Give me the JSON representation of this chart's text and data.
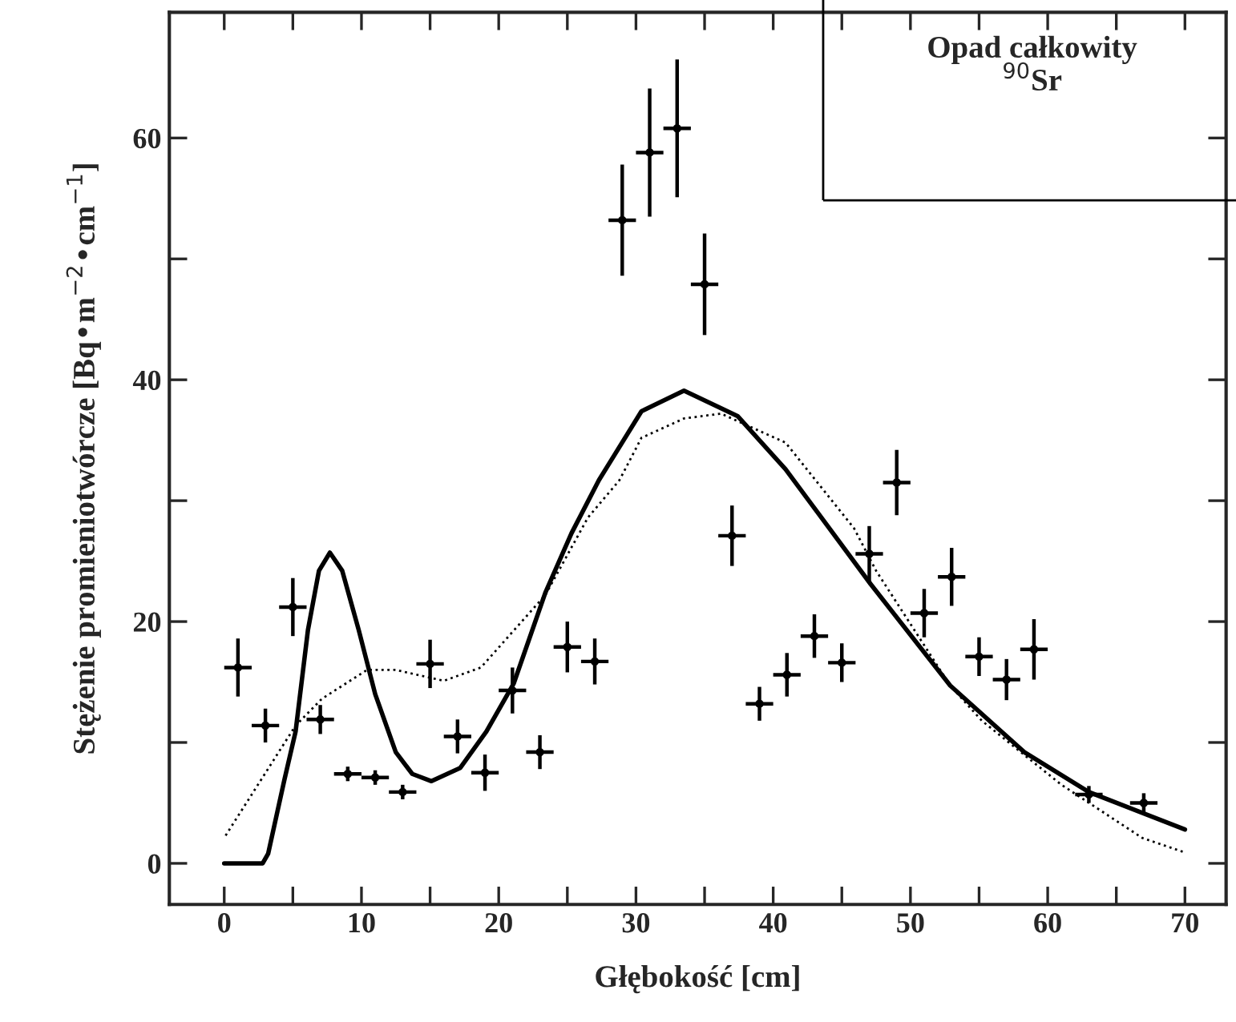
{
  "chart_data": {
    "type": "scatter",
    "xlabel": "Głębokość [cm]",
    "ylabel": "Stężenie promieniotwórcze [Bq•m$^{−2}$•cm$^{−1}$]",
    "annotations": [
      "Opad całkowity",
      "$^{90}$Sr"
    ],
    "xlim": [
      -4,
      73
    ],
    "ylim": [
      -3.4,
      70.4
    ],
    "xticks": [
      0,
      {
        "value": 5,
        "label": null
      },
      10,
      {
        "value": 15,
        "label": null
      },
      20,
      {
        "value": 25,
        "label": null
      },
      30,
      {
        "value": 35,
        "label": null
      },
      40,
      {
        "value": 45,
        "label": null
      },
      50,
      {
        "value": 55,
        "label": null
      },
      60,
      {
        "value": 65,
        "label": null
      },
      70
    ],
    "yticks": [
      0,
      {
        "value": 10,
        "label": null
      },
      20,
      {
        "value": 30,
        "label": null
      },
      40,
      {
        "value": 50,
        "label": null
      },
      60
    ],
    "grid": false,
    "legend": false,
    "series": [
      {
        "color": "#000000",
        "x": [
          1,
          3,
          5,
          7,
          9,
          11,
          13,
          15,
          17,
          19,
          21,
          23,
          25,
          27,
          29,
          31,
          33,
          35,
          37,
          39,
          41,
          43,
          45,
          47,
          49,
          51,
          53,
          55,
          57,
          59,
          63,
          67
        ],
        "values": [
          16.2,
          11.4,
          21.2,
          11.9,
          7.4,
          7.1,
          5.9,
          16.5,
          10.5,
          7.5,
          14.3,
          9.2,
          17.9,
          16.7,
          53.2,
          58.8,
          60.8,
          47.9,
          27.1,
          13.2,
          15.6,
          18.8,
          16.6,
          25.6,
          31.5,
          20.7,
          23.7,
          17.1,
          15.2,
          17.7,
          5.7,
          5.0
        ],
        "errors": [
          2.4,
          1.4,
          2.4,
          1.2,
          0.6,
          0.6,
          0.6,
          2.0,
          1.4,
          1.5,
          1.9,
          1.4,
          2.1,
          1.9,
          4.6,
          5.3,
          5.7,
          4.2,
          2.5,
          1.4,
          1.8,
          1.8,
          1.6,
          2.3,
          2.7,
          2.0,
          2.4,
          1.6,
          1.7,
          2.5,
          0.7,
          0.8
        ],
        "xerrors": [
          1,
          1,
          1,
          1,
          1,
          1,
          1,
          1,
          1,
          1,
          1,
          1,
          1,
          1,
          1,
          1,
          1,
          1,
          1,
          1,
          1,
          1,
          1,
          1,
          1,
          1,
          1,
          1,
          1,
          1,
          1,
          1
        ]
      },
      {
        "type": "line",
        "color": "#000000",
        "line_style": "solid",
        "x": [
          0,
          2.8,
          3.2,
          4.4,
          5.2,
          6.1,
          6.9,
          7.7,
          8.6,
          9.8,
          11.0,
          12.5,
          13.7,
          15.1,
          17.2,
          19.1,
          21.1,
          23.4,
          25.3,
          27.3,
          30.4,
          33.5,
          37.4,
          40.9,
          47.1,
          52.9,
          58.3,
          63,
          70
        ],
        "values": [
          0,
          0,
          0.8,
          7.0,
          10.9,
          19.3,
          24.2,
          25.7,
          24.2,
          19.3,
          14.0,
          9.2,
          7.4,
          6.8,
          7.9,
          10.9,
          14.9,
          22.4,
          27.3,
          31.7,
          37.4,
          39.1,
          37.0,
          32.6,
          23.1,
          14.7,
          9.2,
          5.9,
          2.8
        ]
      },
      {
        "type": "line",
        "color": "#000000",
        "line_style": "dotted",
        "x": [
          0.1,
          5.2,
          7.1,
          10.4,
          12.5,
          16.0,
          18.7,
          23.4,
          26.5,
          28.8,
          30.4,
          33.5,
          36.2,
          40.9,
          45.9,
          47.5,
          52.9,
          55.2,
          61.0,
          66.9,
          70
        ],
        "values": [
          2.3,
          11.4,
          13.6,
          16.0,
          16.0,
          15.1,
          16.2,
          22.2,
          28.6,
          31.7,
          35.2,
          36.8,
          37.2,
          34.8,
          27.7,
          24.2,
          14.7,
          11.8,
          6.5,
          2.1,
          0.9
        ]
      }
    ]
  }
}
